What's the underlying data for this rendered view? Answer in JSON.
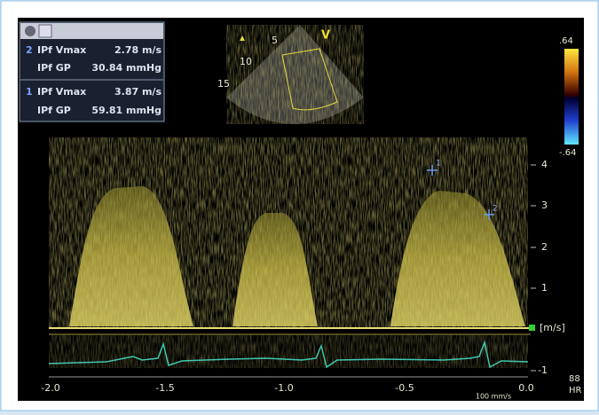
{
  "measurements": [
    {
      "index": "2",
      "rows": [
        {
          "label": "IPf Vmax",
          "value": "2.78 m/s"
        },
        {
          "label": "IPf GP",
          "value": "30.84 mmHg"
        }
      ]
    },
    {
      "index": "1",
      "rows": [
        {
          "label": "IPf Vmax",
          "value": "3.87 m/s"
        },
        {
          "label": "IPf GP",
          "value": "59.81 mmHg"
        }
      ]
    }
  ],
  "sector": {
    "depths": [
      "5",
      "10",
      "15"
    ],
    "mode": "V"
  },
  "color_bar": {
    "top": ".64",
    "bottom": "-.64"
  },
  "velocity_axis": {
    "ticks": [
      "4",
      "3",
      "2",
      "1"
    ],
    "unit": "[m/s]",
    "negative": "-1"
  },
  "time_axis": {
    "ticks": [
      "-2.0",
      "-1.5",
      "-1.0",
      "-0.5",
      "0.0"
    ]
  },
  "markers": [
    "1",
    "2"
  ],
  "sweep_speed": "100 mm/s",
  "heart_rate": {
    "value": "88",
    "label": "HR"
  }
}
